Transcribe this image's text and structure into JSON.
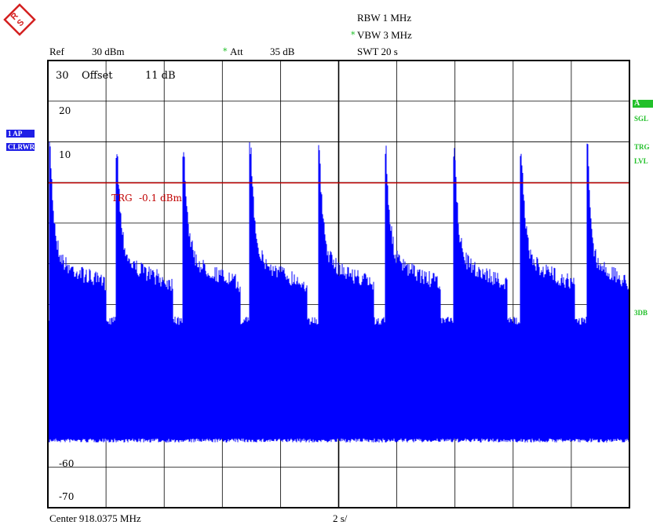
{
  "header": {
    "rbw": "RBW 1 MHz",
    "vbw": "VBW 3 MHz",
    "vbw_mark": "*",
    "swt": "SWT 20 s",
    "ref": "Ref",
    "ref_value": "30 dBm",
    "att_mark": "*",
    "att": "Att",
    "att_value": "35 dB"
  },
  "left_panel": {
    "trace_label_1": "1 AP",
    "trace_label_2": "CLRWR"
  },
  "right_panel": {
    "a_label": "A",
    "sgl_label": "SGL",
    "trg_label": "TRG",
    "lvl_label": "LVL",
    "db3_label": "3DB"
  },
  "plot_text": {
    "offset_label": "Offset",
    "offset_value": "11 dB",
    "trigger_label": "TRG",
    "trigger_value": "-0.1 dBm"
  },
  "footer": {
    "center": "Center 918.0375 MHz",
    "span": "2 s/"
  },
  "colors": {
    "trace": "#0000ff",
    "trigger_line": "#c00000",
    "grid": "#000000",
    "label_green": "#22c02a",
    "label_blue": "#1e1ee6",
    "logo": "#d42020"
  },
  "chart_data": {
    "type": "line",
    "xlabel": "",
    "ylabel": "",
    "xlim": [
      0,
      20
    ],
    "ylim": [
      -80,
      30
    ],
    "y_ticks_printed": [
      "30",
      "20",
      "10",
      "-60",
      "-70"
    ],
    "x_divisions": 10,
    "y_divisions": 11,
    "trigger_level_dbm": -0.1,
    "series": [
      {
        "bursts": [
          {
            "t_start": 0.05,
            "t_end": 2.0,
            "peak": 10
          },
          {
            "t_start": 2.35,
            "t_end": 4.3,
            "peak": 10
          },
          {
            "t_start": 4.65,
            "t_end": 6.6,
            "peak": 10
          },
          {
            "t_start": 6.95,
            "t_end": 8.9,
            "peak": 10
          },
          {
            "t_start": 9.3,
            "t_end": 11.2,
            "peak": 10
          },
          {
            "t_start": 11.6,
            "t_end": 13.5,
            "peak": 10
          },
          {
            "t_start": 13.95,
            "t_end": 15.8,
            "peak": 10
          },
          {
            "t_start": 16.25,
            "t_end": 18.1,
            "peak": 10
          },
          {
            "t_start": 18.55,
            "t_end": 20.0,
            "peak": 10
          }
        ],
        "burst_tail_level": -17,
        "gap_level": -33,
        "noise_floor": -63
      }
    ]
  }
}
